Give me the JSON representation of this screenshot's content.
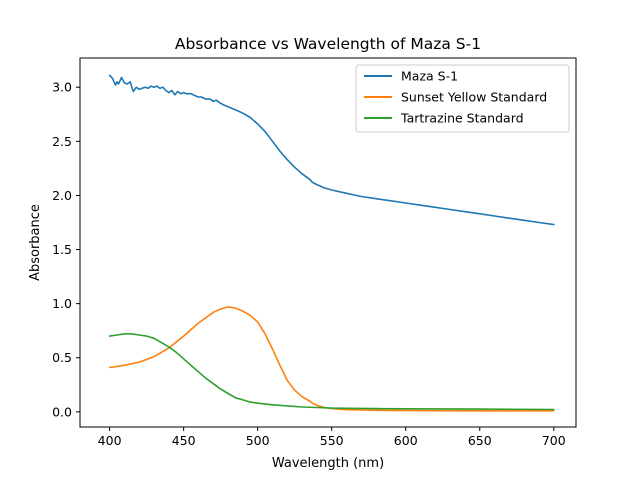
{
  "chart_data": {
    "type": "line",
    "title": "Absorbance vs Wavelength of Maza S-1",
    "xlabel": "Wavelength (nm)",
    "ylabel": "Absorbance",
    "xlim": [
      380,
      715
    ],
    "ylim": [
      -0.14,
      3.27
    ],
    "xticks": [
      400,
      450,
      500,
      550,
      600,
      650,
      700
    ],
    "yticks": [
      0.0,
      0.5,
      1.0,
      1.5,
      2.0,
      2.5,
      3.0
    ],
    "xtick_labels": [
      "400",
      "450",
      "500",
      "550",
      "600",
      "650",
      "700"
    ],
    "ytick_labels": [
      "0.0",
      "0.5",
      "1.0",
      "1.5",
      "2.0",
      "2.5",
      "3.0"
    ],
    "grid": false,
    "legend_position": "top-right",
    "series": [
      {
        "name": "Maza S-1",
        "color": "#1f77b4",
        "x": [
          400,
          402,
          404,
          405,
          406,
          408,
          410,
          412,
          414,
          415,
          416,
          418,
          420,
          422,
          424,
          426,
          428,
          430,
          432,
          434,
          436,
          438,
          440,
          442,
          444,
          446,
          448,
          450,
          452,
          455,
          458,
          460,
          462,
          465,
          468,
          470,
          472,
          475,
          478,
          480,
          485,
          490,
          495,
          500,
          505,
          510,
          515,
          520,
          525,
          530,
          535,
          537,
          540,
          545,
          550,
          560,
          570,
          580,
          590,
          600,
          610,
          620,
          630,
          640,
          650,
          660,
          670,
          680,
          690,
          700
        ],
        "y": [
          3.11,
          3.08,
          3.02,
          3.05,
          3.03,
          3.09,
          3.04,
          3.03,
          3.05,
          3.0,
          2.96,
          3.0,
          2.98,
          2.99,
          3.0,
          2.99,
          3.01,
          3.0,
          3.01,
          2.99,
          3.0,
          2.97,
          2.95,
          2.97,
          2.93,
          2.96,
          2.94,
          2.95,
          2.94,
          2.94,
          2.92,
          2.91,
          2.91,
          2.89,
          2.89,
          2.87,
          2.88,
          2.85,
          2.83,
          2.82,
          2.79,
          2.76,
          2.72,
          2.66,
          2.59,
          2.5,
          2.41,
          2.33,
          2.26,
          2.2,
          2.15,
          2.12,
          2.1,
          2.07,
          2.05,
          2.02,
          1.99,
          1.97,
          1.95,
          1.93,
          1.91,
          1.89,
          1.87,
          1.85,
          1.83,
          1.81,
          1.79,
          1.77,
          1.75,
          1.73
        ]
      },
      {
        "name": "Sunset Yellow Standard",
        "color": "#ff7f0e",
        "x": [
          400,
          410,
          420,
          430,
          440,
          450,
          460,
          470,
          475,
          480,
          485,
          490,
          495,
          500,
          505,
          510,
          515,
          520,
          525,
          530,
          535,
          537,
          540,
          545,
          550,
          560,
          580,
          600,
          650,
          700
        ],
        "y": [
          0.41,
          0.43,
          0.46,
          0.51,
          0.59,
          0.7,
          0.82,
          0.92,
          0.95,
          0.97,
          0.96,
          0.93,
          0.89,
          0.83,
          0.72,
          0.58,
          0.43,
          0.29,
          0.2,
          0.14,
          0.1,
          0.08,
          0.06,
          0.04,
          0.03,
          0.02,
          0.015,
          0.012,
          0.01,
          0.01
        ]
      },
      {
        "name": "Tartrazine Standard",
        "color": "#2ca02c",
        "x": [
          400,
          405,
          410,
          415,
          420,
          425,
          430,
          435,
          440,
          445,
          450,
          455,
          460,
          465,
          470,
          475,
          480,
          485,
          490,
          495,
          500,
          510,
          520,
          530,
          540,
          550,
          560,
          580,
          600,
          650,
          700
        ],
        "y": [
          0.7,
          0.71,
          0.72,
          0.72,
          0.71,
          0.7,
          0.68,
          0.64,
          0.6,
          0.55,
          0.49,
          0.43,
          0.37,
          0.31,
          0.26,
          0.21,
          0.17,
          0.13,
          0.11,
          0.09,
          0.08,
          0.065,
          0.055,
          0.045,
          0.04,
          0.035,
          0.033,
          0.03,
          0.028,
          0.025,
          0.022
        ]
      }
    ]
  }
}
